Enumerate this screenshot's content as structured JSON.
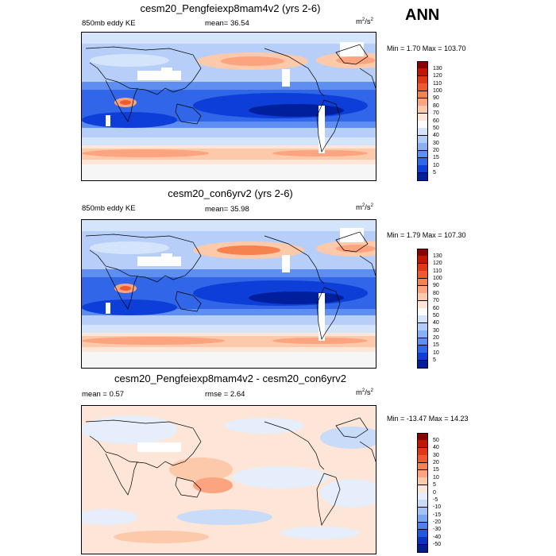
{
  "season": "ANN",
  "panels": [
    {
      "title": "cesm20_Pengfeiexp8mam4v2 (yrs 2-6)",
      "left_label": "850mb eddy KE",
      "center_label": "mean=  36.54",
      "units": "m2/s2",
      "minmax": "Min =   1.70 Max = 103.70",
      "kind": "abs",
      "colorbar": {
        "labels": [
          "130",
          "120",
          "110",
          "100",
          "90",
          "80",
          "70",
          "60",
          "50",
          "40",
          "30",
          "20",
          "15",
          "10",
          "5"
        ],
        "colors": [
          "#8b0000",
          "#c01800",
          "#e0361a",
          "#ee5b30",
          "#f6824f",
          "#fba47f",
          "#fdc9ab",
          "#fde6d8",
          "#fbfbfb",
          "#d4e4fb",
          "#b0ccf8",
          "#88b1f4",
          "#5d8ef0",
          "#3166e8",
          "#0d3fd8",
          "#001f9c"
        ]
      }
    },
    {
      "title": "cesm20_con6yrv2 (yrs 2-6)",
      "left_label": "850mb eddy KE",
      "center_label": "mean=  35.98",
      "units": "m2/s2",
      "minmax": "Min =   1.79 Max = 107.30",
      "kind": "abs",
      "colorbar": {
        "labels": [
          "130",
          "120",
          "110",
          "100",
          "90",
          "80",
          "70",
          "60",
          "50",
          "40",
          "30",
          "20",
          "15",
          "10",
          "5"
        ],
        "colors": [
          "#8b0000",
          "#c01800",
          "#e0361a",
          "#ee5b30",
          "#f6824f",
          "#fba47f",
          "#fdc9ab",
          "#fde6d8",
          "#fbfbfb",
          "#d4e4fb",
          "#b0ccf8",
          "#88b1f4",
          "#5d8ef0",
          "#3166e8",
          "#0d3fd8",
          "#001f9c"
        ]
      }
    },
    {
      "title": "cesm20_Pengfeiexp8mam4v2 - cesm20_con6yrv2",
      "left_label": "mean =   0.57",
      "center_label": "rmse =   2.64",
      "units": "m2/s2",
      "minmax": "Min = -13.47 Max =  14.23",
      "kind": "diff",
      "colorbar": {
        "labels": [
          "50",
          "40",
          "30",
          "20",
          "15",
          "10",
          "5",
          "0",
          "-5",
          "-10",
          "-15",
          "-20",
          "-30",
          "-40",
          "-50"
        ],
        "colors": [
          "#8b0000",
          "#c01800",
          "#e0361a",
          "#ee5b30",
          "#f6824f",
          "#fba47f",
          "#fdc9ab",
          "#fde6d8",
          "#e6eefb",
          "#c8dbf8",
          "#a3c2f5",
          "#7aa5f1",
          "#4f81ec",
          "#2456e0",
          "#0b33c0",
          "#001f8c"
        ]
      }
    }
  ]
}
